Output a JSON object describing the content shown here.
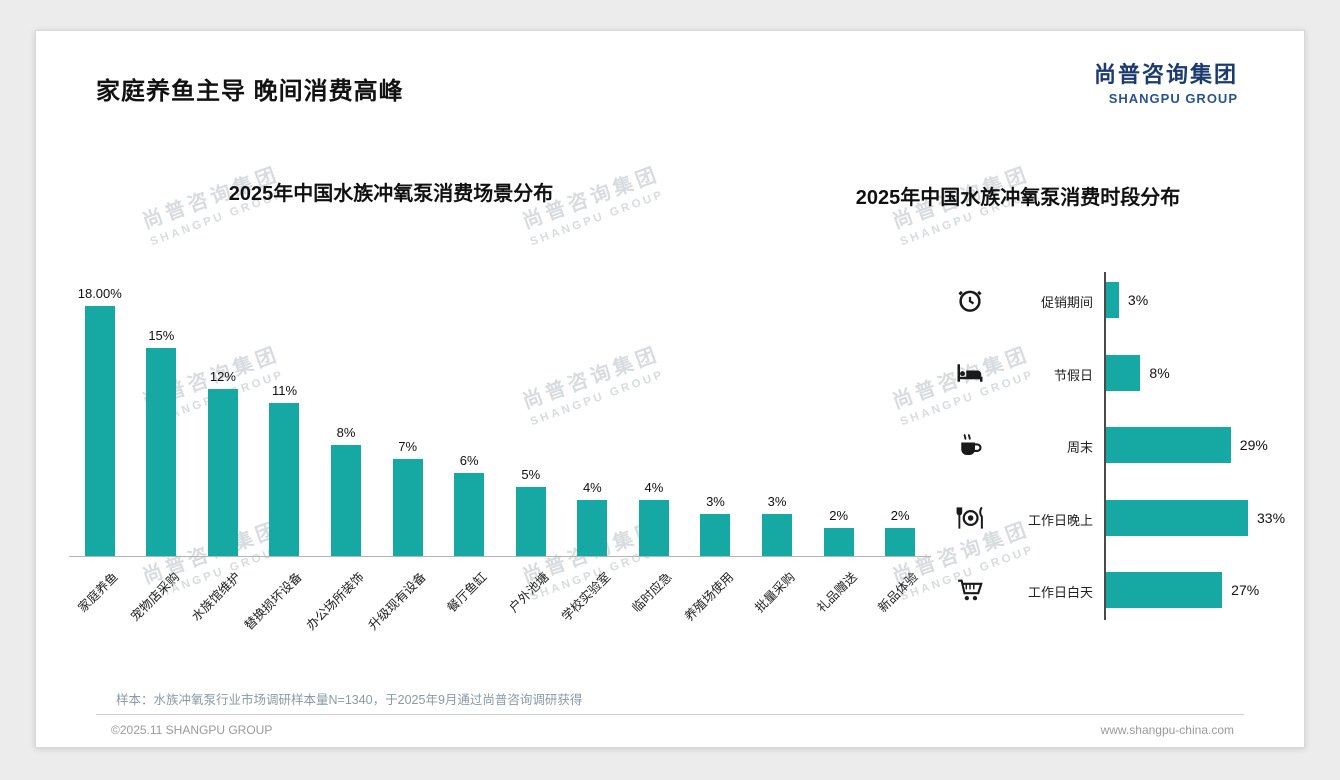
{
  "slide": {
    "title": "家庭养鱼主导 晚间消费高峰",
    "logo": {
      "cn": "尚普咨询集团",
      "en": "SHANGPU GROUP"
    },
    "watermark": {
      "cn": "尚普咨询集团",
      "en": "SHANGPU GROUP"
    },
    "source_note": "样本：水族冲氧泵行业市场调研样本量N=1340，于2025年9月通过尚普咨询调研获得",
    "footer_left": "©2025.11 SHANGPU GROUP",
    "footer_right": "www.shangpu-china.com"
  },
  "colors": {
    "bar": "#16a8a2",
    "logo_navy": "#1c3a6e",
    "axis_gray": "#4a4a4a"
  },
  "chart_data": [
    {
      "type": "bar",
      "orientation": "vertical",
      "title": "2025年中国水族冲氧泵消费场景分布",
      "categories": [
        "家庭养鱼",
        "宠物店采购",
        "水族馆维护",
        "替换损坏设备",
        "办公场所装饰",
        "升级现有设备",
        "餐厅鱼缸",
        "户外池塘",
        "学校实验室",
        "临时应急",
        "养殖场使用",
        "批量采购",
        "礼品赠送",
        "新品体验"
      ],
      "values": [
        18,
        15,
        12,
        11,
        8,
        7,
        6,
        5,
        4,
        4,
        3,
        3,
        2,
        2
      ],
      "value_labels": [
        "18.00%",
        "15%",
        "12%",
        "11%",
        "8%",
        "7%",
        "6%",
        "5%",
        "4%",
        "4%",
        "3%",
        "3%",
        "2%",
        "2%"
      ],
      "ylim": [
        0,
        18
      ],
      "grid": false,
      "legend": "none",
      "bar_color": "#16a8a2"
    },
    {
      "type": "bar",
      "orientation": "horizontal",
      "title": "2025年中国水族冲氧泵消费时段分布",
      "categories": [
        "促销期间",
        "节假日",
        "周末",
        "工作日晚上",
        "工作日白天"
      ],
      "values": [
        3,
        8,
        29,
        33,
        27
      ],
      "value_labels": [
        "3%",
        "8%",
        "29%",
        "33%",
        "27%"
      ],
      "icons": [
        "alarm-clock-icon",
        "bed-icon",
        "coffee-icon",
        "dining-icon",
        "cart-icon"
      ],
      "xlim": [
        0,
        35
      ],
      "grid": false,
      "legend": "none",
      "bar_color": "#16a8a2"
    }
  ]
}
